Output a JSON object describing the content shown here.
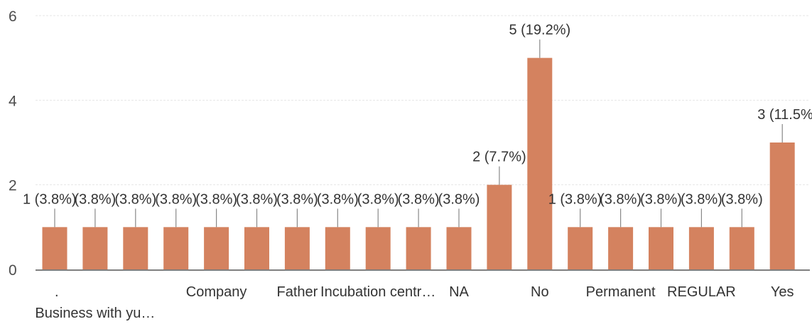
{
  "chart_data": {
    "type": "bar",
    "categories": [
      ".",
      "Business with yu…",
      "",
      "",
      "Company",
      "",
      "Father",
      "",
      "Incubation centr…",
      "",
      "NA",
      "",
      "No",
      "",
      "Permanent",
      "",
      "REGULAR",
      "",
      "Yes"
    ],
    "values": [
      1,
      1,
      1,
      1,
      1,
      1,
      1,
      1,
      1,
      1,
      1,
      2,
      5,
      1,
      1,
      1,
      1,
      1,
      3
    ],
    "data_labels": [
      "1 (3.8%)",
      "(3.8%)",
      "(3.8%)",
      "(3.8%)",
      "(3.8%)",
      "(3.8%)",
      "(3.8%)",
      "(3.8%)",
      "(3.8%)",
      "(3.8%)",
      "(3.8%)",
      "2 (7.7%)",
      "5 (19.2%)",
      "1 (3.8%)",
      "(3.8%)",
      "(3.8%)",
      "(3.8%)",
      "(3.8%)",
      "3 (11.5%"
    ],
    "yticks": [
      "0",
      "2",
      "4",
      "6"
    ],
    "ylim": [
      0,
      6
    ],
    "grid": true,
    "bar_color": "#d4825f",
    "title": "",
    "xlabel": "",
    "ylabel": ""
  }
}
